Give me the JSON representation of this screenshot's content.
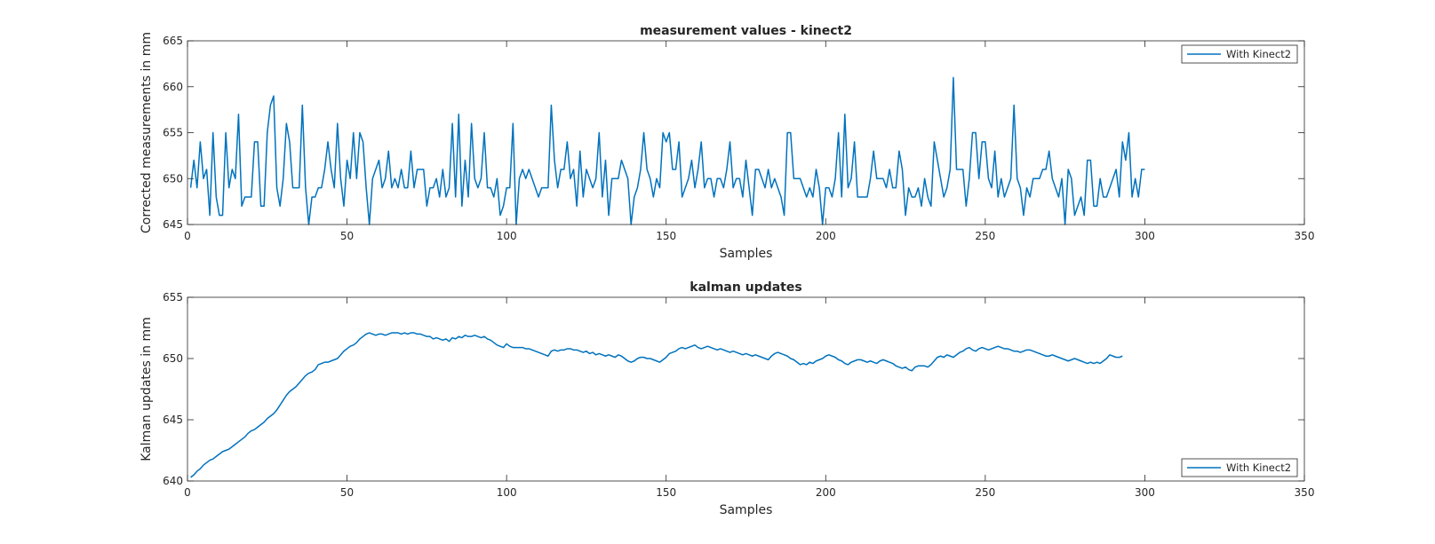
{
  "figure": {
    "background": "#ffffff"
  },
  "chart_data": [
    {
      "type": "line",
      "title": "measurement values - kinect2",
      "xlabel": "Samples",
      "ylabel": "Corrected measurements in mm",
      "xlim": [
        0,
        350
      ],
      "ylim": [
        645,
        665
      ],
      "xticks": [
        0,
        50,
        100,
        150,
        200,
        250,
        300,
        350
      ],
      "yticks": [
        645,
        650,
        655,
        660,
        665
      ],
      "grid": false,
      "legend_position": "top-right",
      "series": [
        {
          "name": "With Kinect2",
          "color": "#0072BD",
          "x_start": 1,
          "x_step": 1,
          "values": [
            649,
            652,
            649,
            654,
            650,
            651,
            646,
            655,
            648,
            646,
            646,
            655,
            649,
            651,
            650,
            657,
            647,
            648,
            648,
            648,
            654,
            654,
            647,
            647,
            655,
            658,
            659,
            649,
            647,
            650,
            656,
            654,
            649,
            649,
            649,
            658,
            649,
            645,
            648,
            648,
            649,
            649,
            651,
            654,
            651,
            649,
            656,
            650,
            647,
            652,
            650,
            655,
            650,
            655,
            654,
            649,
            645,
            650,
            651,
            652,
            649,
            650,
            653,
            649,
            650,
            649,
            651,
            649,
            649,
            653,
            649,
            651,
            651,
            651,
            647,
            649,
            649,
            650,
            648,
            651,
            648,
            649,
            656,
            648,
            657,
            647,
            652,
            648,
            656,
            650,
            649,
            650,
            655,
            649,
            649,
            648,
            650,
            646,
            647,
            649,
            649,
            656,
            645,
            650,
            651,
            650,
            651,
            650,
            649,
            648,
            649,
            649,
            649,
            658,
            652,
            649,
            651,
            651,
            654,
            650,
            651,
            647,
            653,
            648,
            651,
            650,
            649,
            650,
            655,
            648,
            652,
            646,
            650,
            650,
            650,
            652,
            651,
            650,
            645,
            648,
            649,
            651,
            655,
            651,
            650,
            648,
            650,
            649,
            655,
            654,
            655,
            651,
            651,
            654,
            648,
            649,
            650,
            652,
            649,
            651,
            654,
            649,
            650,
            650,
            648,
            650,
            650,
            649,
            651,
            654,
            649,
            650,
            650,
            648,
            652,
            649,
            646,
            651,
            651,
            650,
            649,
            651,
            649,
            650,
            649,
            648,
            646,
            655,
            655,
            650,
            650,
            650,
            649,
            648,
            649,
            648,
            651,
            649,
            645,
            649,
            649,
            648,
            650,
            655,
            648,
            657,
            649,
            650,
            654,
            648,
            648,
            648,
            648,
            650,
            653,
            650,
            650,
            650,
            649,
            651,
            649,
            649,
            653,
            651,
            646,
            649,
            648,
            648,
            649,
            647,
            650,
            648,
            647,
            654,
            652,
            650,
            648,
            649,
            651,
            661,
            651,
            651,
            651,
            647,
            650,
            655,
            655,
            650,
            654,
            654,
            650,
            649,
            653,
            648,
            650,
            648,
            649,
            650,
            658,
            650,
            649,
            646,
            649,
            648,
            650,
            650,
            650,
            651,
            651,
            653,
            650,
            649,
            648,
            650,
            645,
            651,
            650,
            646,
            647,
            648,
            646,
            652,
            652,
            647,
            647,
            650,
            648,
            648,
            649,
            650,
            651,
            648,
            654,
            652,
            655,
            648,
            650,
            648,
            651,
            651
          ]
        }
      ]
    },
    {
      "type": "line",
      "title": "kalman updates",
      "xlabel": "Samples",
      "ylabel": "Kalman updates in mm",
      "xlim": [
        0,
        350
      ],
      "ylim": [
        640,
        655
      ],
      "xticks": [
        0,
        50,
        100,
        150,
        200,
        250,
        300,
        350
      ],
      "yticks": [
        640,
        645,
        650,
        655
      ],
      "grid": false,
      "legend_position": "bottom-right",
      "series": [
        {
          "name": "With Kinect2",
          "color": "#0072BD",
          "x_start": 1,
          "x_step": 1,
          "values": [
            640.3,
            640.5,
            640.8,
            641.0,
            641.3,
            641.5,
            641.7,
            641.8,
            642.0,
            642.2,
            642.4,
            642.5,
            642.6,
            642.8,
            643.0,
            643.2,
            643.4,
            643.6,
            643.9,
            644.1,
            644.2,
            644.4,
            644.6,
            644.8,
            645.1,
            645.3,
            645.5,
            645.8,
            646.2,
            646.6,
            647.0,
            647.3,
            647.5,
            647.7,
            648.0,
            648.3,
            648.6,
            648.8,
            648.9,
            649.1,
            649.5,
            649.6,
            649.7,
            649.7,
            649.8,
            649.9,
            650.0,
            650.3,
            650.6,
            650.8,
            651.0,
            651.1,
            651.3,
            651.6,
            651.8,
            652.0,
            652.1,
            652.0,
            651.9,
            652.0,
            652.0,
            651.9,
            652.0,
            652.1,
            652.1,
            652.1,
            652.0,
            652.1,
            652.0,
            652.1,
            652.1,
            652.0,
            652.0,
            651.9,
            651.8,
            651.8,
            651.6,
            651.7,
            651.6,
            651.5,
            651.6,
            651.4,
            651.7,
            651.6,
            651.8,
            651.7,
            651.9,
            651.8,
            651.8,
            651.9,
            651.8,
            651.7,
            651.8,
            651.6,
            651.5,
            651.3,
            651.1,
            651.0,
            650.9,
            651.2,
            651.0,
            650.9,
            650.9,
            650.9,
            650.9,
            650.8,
            650.8,
            650.7,
            650.6,
            650.5,
            650.4,
            650.3,
            650.2,
            650.6,
            650.7,
            650.6,
            650.7,
            650.7,
            650.8,
            650.8,
            650.7,
            650.7,
            650.6,
            650.5,
            650.6,
            650.4,
            650.5,
            650.3,
            650.4,
            650.3,
            650.2,
            650.3,
            650.2,
            650.1,
            650.3,
            650.2,
            650.0,
            649.8,
            649.7,
            649.8,
            650.0,
            650.1,
            650.1,
            650.0,
            650.0,
            649.9,
            649.8,
            649.7,
            649.9,
            650.1,
            650.4,
            650.5,
            650.6,
            650.8,
            650.9,
            650.8,
            650.9,
            651.0,
            651.1,
            650.9,
            650.8,
            650.9,
            651.0,
            650.9,
            650.8,
            650.7,
            650.8,
            650.7,
            650.6,
            650.5,
            650.6,
            650.5,
            650.4,
            650.3,
            650.4,
            650.3,
            650.2,
            650.3,
            650.2,
            650.1,
            650.0,
            649.9,
            650.2,
            650.4,
            650.5,
            650.4,
            650.3,
            650.2,
            650.0,
            649.9,
            649.7,
            649.5,
            649.6,
            649.5,
            649.7,
            649.6,
            649.8,
            649.9,
            650.0,
            650.2,
            650.3,
            650.2,
            650.1,
            649.9,
            649.8,
            649.6,
            649.5,
            649.7,
            649.8,
            649.9,
            649.9,
            649.8,
            649.7,
            649.8,
            649.7,
            649.6,
            649.8,
            649.9,
            649.8,
            649.7,
            649.6,
            649.4,
            649.3,
            649.2,
            649.3,
            649.1,
            649.0,
            649.3,
            649.4,
            649.4,
            649.4,
            649.3,
            649.5,
            649.8,
            650.1,
            650.2,
            650.1,
            650.3,
            650.2,
            650.1,
            650.3,
            650.5,
            650.6,
            650.8,
            650.9,
            650.7,
            650.6,
            650.8,
            650.9,
            650.8,
            650.7,
            650.8,
            650.9,
            651.0,
            650.9,
            650.8,
            650.8,
            650.7,
            650.6,
            650.6,
            650.5,
            650.6,
            650.7,
            650.7,
            650.6,
            650.5,
            650.4,
            650.3,
            650.2,
            650.2,
            650.3,
            650.2,
            650.1,
            650.0,
            649.9,
            649.8,
            649.9,
            650.0,
            649.9,
            649.8,
            649.7,
            649.6,
            649.7,
            649.6,
            649.7,
            649.6,
            649.8,
            650.0,
            650.3,
            650.2,
            650.1,
            650.1,
            650.2
          ]
        }
      ]
    }
  ]
}
